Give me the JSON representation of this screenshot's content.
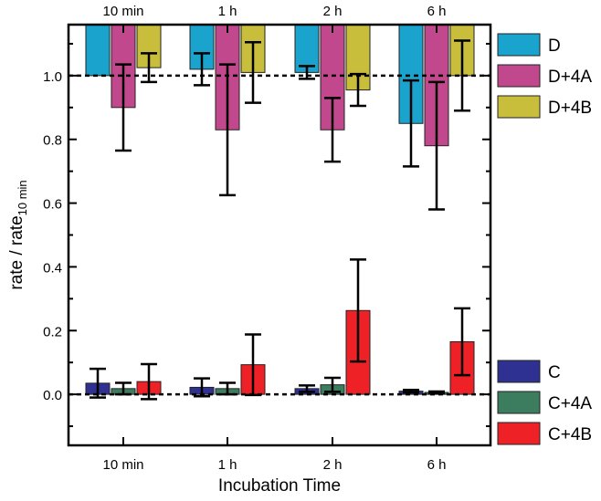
{
  "chart_data": {
    "type": "bar",
    "xlabel": "Incubation Time",
    "ylabel_main": "rate / rate",
    "ylabel_sub": "10 min",
    "ylim": [
      -0.16,
      1.16
    ],
    "yticks": [
      0.0,
      0.2,
      0.4,
      0.6,
      0.8,
      1.0
    ],
    "ytick_labels": [
      "0.0",
      "0.2",
      "0.4",
      "0.6",
      "0.8",
      "1.0"
    ],
    "categories": [
      "10 min",
      "1 h",
      "2 h",
      "6 h"
    ],
    "reference_lines": [
      1.0,
      0.0
    ],
    "top_group": {
      "series": [
        {
          "name": "D",
          "color": "#1aa3cc",
          "values": [
            1.0,
            1.02,
            1.01,
            0.85
          ],
          "errors": [
            0.0,
            0.05,
            0.02,
            0.135
          ]
        },
        {
          "name": "D+4A",
          "color": "#c2488e",
          "values": [
            0.9,
            0.83,
            0.83,
            0.78
          ],
          "errors": [
            0.135,
            0.205,
            0.1,
            0.2
          ]
        },
        {
          "name": "D+4B",
          "color": "#c9be3c",
          "values": [
            1.025,
            1.01,
            0.955,
            1.0
          ],
          "errors": [
            0.045,
            0.095,
            0.05,
            0.11
          ]
        }
      ]
    },
    "bottom_group": {
      "series": [
        {
          "name": "C",
          "color": "#2e3192",
          "values": [
            0.035,
            0.022,
            0.018,
            0.01
          ],
          "errors": [
            0.045,
            0.028,
            0.01,
            0.004
          ]
        },
        {
          "name": "C+4A",
          "color": "#3c7d5f",
          "values": [
            0.018,
            0.018,
            0.03,
            0.006
          ],
          "errors": [
            0.018,
            0.018,
            0.022,
            0.003
          ]
        },
        {
          "name": "C+4B",
          "color": "#ee2127",
          "values": [
            0.04,
            0.093,
            0.263,
            0.165
          ],
          "errors": [
            0.055,
            0.095,
            0.16,
            0.105
          ]
        }
      ]
    }
  }
}
